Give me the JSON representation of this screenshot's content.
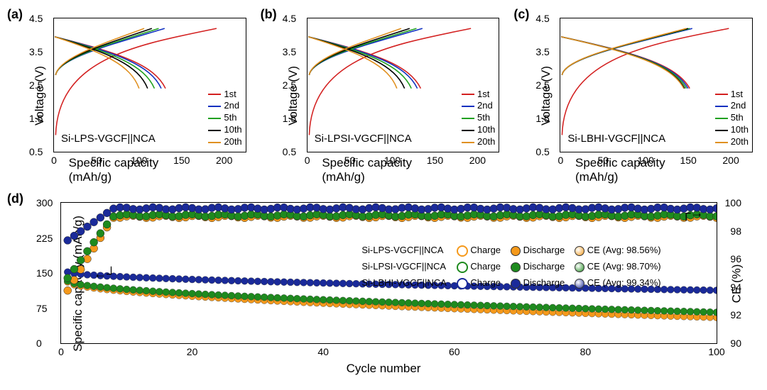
{
  "panels_abc": {
    "xlabel": "Specific capacity (mAh/g)",
    "ylabel": "Voltage (V)",
    "xlim": [
      0,
      225
    ],
    "xtick_step": 50,
    "ylim": [
      0.5,
      4.5
    ],
    "ytick_step": 1.0,
    "cycle_labels": [
      "1st",
      "2nd",
      "5th",
      "10th",
      "20th"
    ],
    "cycle_colors": [
      "#d32020",
      "#1030c0",
      "#20a020",
      "#000000",
      "#e09020"
    ],
    "plots": [
      {
        "label": "(a)",
        "sample": "Si-LPS-VGCF||NCA",
        "charge_end": [
          191,
          130,
          123,
          115,
          106
        ],
        "discharge_end": [
          131,
          126,
          118,
          110,
          100
        ]
      },
      {
        "label": "(b)",
        "sample": "Si-LPSI-VGCF||NCA",
        "charge_end": [
          192,
          135,
          128,
          120,
          110
        ],
        "discharge_end": [
          133,
          129,
          122,
          114,
          105
        ]
      },
      {
        "label": "(c)",
        "sample": "Si-LBHI-VGCF||NCA",
        "charge_end": [
          198,
          155,
          152,
          150,
          148
        ],
        "discharge_end": [
          152,
          150,
          148,
          146,
          145
        ]
      }
    ]
  },
  "panel_d": {
    "label": "(d)",
    "xlabel": "Cycle number",
    "xlim": [
      0,
      100
    ],
    "xtick_step": 20,
    "ylabel_left": "Specific capacity (mAh/g)",
    "ylim_left": [
      0,
      300
    ],
    "ytick_left": 75,
    "ylabel_right": "CE (%)",
    "ylim_right": [
      90,
      100
    ],
    "ytick_right": 2,
    "series": [
      {
        "name": "Si-LPS-VGCF||NCA",
        "color": "#f5991b",
        "ce": "CE (Avg: 98.56%)",
        "cap_start": 131,
        "cap_end": 55,
        "ce_start": 93,
        "ce_plateau": 99.0
      },
      {
        "name": "Si-LPSI-VGCF||NCA",
        "color": "#1e8a1e",
        "ce": "CE (Avg: 98.70%)",
        "cap_start": 133,
        "cap_end": 66,
        "ce_start": 94,
        "ce_plateau": 99.1
      },
      {
        "name": "Si-LBHI-VGCF||NCA",
        "color": "#1a2a9a",
        "ce": "CE (Avg: 99.34%)",
        "cap_start": 152,
        "cap_end": 113,
        "ce_start": 97,
        "ce_plateau": 99.6
      }
    ]
  }
}
